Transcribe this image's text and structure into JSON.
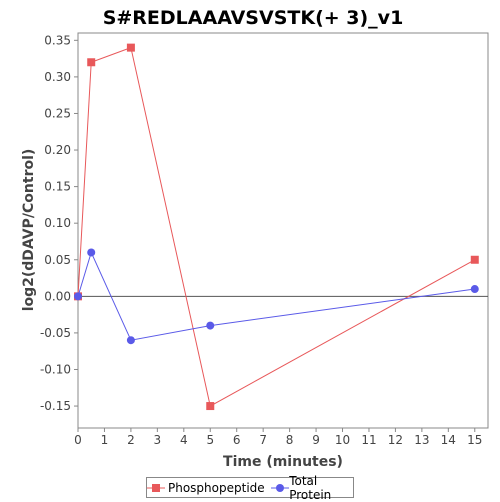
{
  "chart_data": {
    "type": "line",
    "title": "S#REDLAAAVSVSTK(+ 3)_v1",
    "xlabel": "Time (minutes)",
    "ylabel": "log2(dDAVP/Control)",
    "xlim": [
      0,
      15.5
    ],
    "ylim": [
      -0.18,
      0.36
    ],
    "x_ticks": [
      "0",
      "1",
      "2",
      "3",
      "4",
      "5",
      "6",
      "7",
      "8",
      "9",
      "10",
      "11",
      "12",
      "13",
      "14",
      "15"
    ],
    "y_ticks": [
      "-0.15",
      "-0.10",
      "-0.05",
      "0.00",
      "0.05",
      "0.10",
      "0.15",
      "0.20",
      "0.25",
      "0.30",
      "0.35"
    ],
    "grid": false,
    "legend_position": "bottom",
    "series": [
      {
        "name": "Phosphopeptide",
        "color": "#e8585a",
        "marker": "square",
        "x": [
          0,
          0.5,
          2,
          5,
          15
        ],
        "y": [
          0.0,
          0.32,
          0.34,
          -0.15,
          0.05
        ]
      },
      {
        "name": "Total Protein",
        "color": "#5a5ae8",
        "marker": "circle",
        "x": [
          0,
          0.5,
          2,
          5,
          15
        ],
        "y": [
          0.0,
          0.06,
          -0.06,
          -0.04,
          0.01
        ]
      }
    ]
  }
}
